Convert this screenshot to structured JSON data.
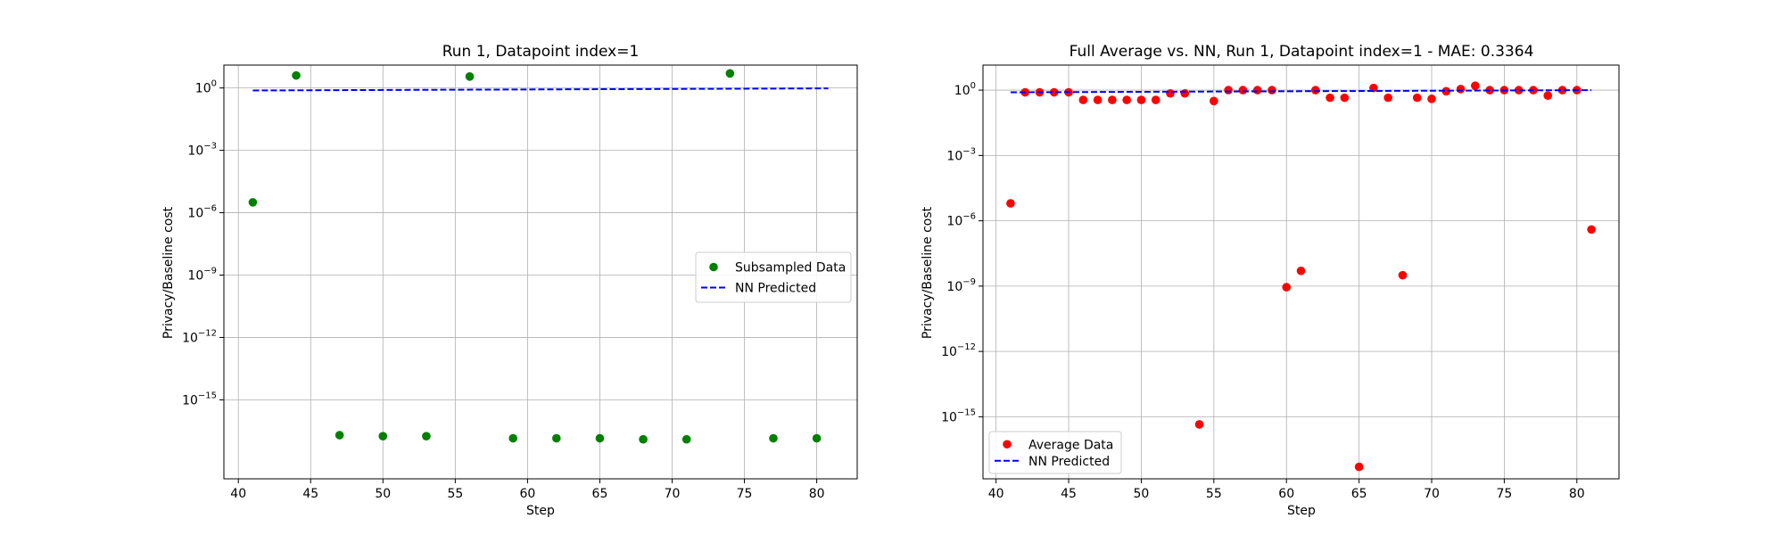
{
  "chart_data": [
    {
      "type": "scatter",
      "title": "Run 1, Datapoint index=1",
      "xlabel": "Step",
      "ylabel": "Privacy/Baseline cost",
      "xlim": [
        39,
        82.8
      ],
      "x_ticks": [
        40,
        45,
        50,
        55,
        60,
        65,
        70,
        75,
        80
      ],
      "yscale": "log",
      "ylim_exponent": [
        -18.8,
        1.1
      ],
      "y_ticks": [
        {
          "exp": 0,
          "label": "10",
          "sup": "0"
        },
        {
          "exp": -3,
          "label": "10",
          "sup": "−3"
        },
        {
          "exp": -6,
          "label": "10",
          "sup": "−6"
        },
        {
          "exp": -9,
          "label": "10",
          "sup": "−9"
        },
        {
          "exp": -12,
          "label": "10",
          "sup": "−12"
        },
        {
          "exp": -15,
          "label": "10",
          "sup": "−15"
        }
      ],
      "grid": true,
      "legend_position": "center-right",
      "series": [
        {
          "name": "Subsampled Data",
          "kind": "scatter",
          "color": "#008000",
          "x": [
            41,
            44,
            47,
            50,
            53,
            56,
            59,
            62,
            65,
            68,
            71,
            74,
            77,
            80
          ],
          "y_exponent": [
            -5.5,
            0.6,
            -16.7,
            -16.75,
            -16.75,
            0.55,
            -16.85,
            -16.85,
            -16.85,
            -16.9,
            -16.9,
            0.7,
            -16.85,
            -16.85
          ]
        },
        {
          "name": "NN Predicted",
          "kind": "dashed-line",
          "color": "#0000ff",
          "x": [
            41,
            80.8
          ],
          "y_exponent": [
            -0.12,
            -0.02
          ]
        }
      ]
    },
    {
      "type": "scatter",
      "title": "Full Average vs. NN, Run 1, Datapoint index=1 - MAE: 0.3364",
      "xlabel": "Step",
      "ylabel": "Privacy/Baseline cost",
      "xlim": [
        39.1,
        82.9
      ],
      "x_ticks": [
        40,
        45,
        50,
        55,
        60,
        65,
        70,
        75,
        80
      ],
      "yscale": "log",
      "ylim_exponent": [
        -17.85,
        1.15
      ],
      "y_ticks": [
        {
          "exp": 0,
          "label": "10",
          "sup": "0"
        },
        {
          "exp": -3,
          "label": "10",
          "sup": "−3"
        },
        {
          "exp": -6,
          "label": "10",
          "sup": "−6"
        },
        {
          "exp": -9,
          "label": "10",
          "sup": "−9"
        },
        {
          "exp": -12,
          "label": "10",
          "sup": "−12"
        },
        {
          "exp": -15,
          "label": "10",
          "sup": "−15"
        }
      ],
      "grid": true,
      "legend_position": "lower-left",
      "series": [
        {
          "name": "Average Data",
          "kind": "scatter",
          "color": "#ff0000",
          "x": [
            41,
            42,
            43,
            44,
            45,
            46,
            47,
            48,
            49,
            50,
            51,
            52,
            53,
            54,
            55,
            56,
            57,
            58,
            59,
            60,
            61,
            62,
            63,
            64,
            65,
            66,
            67,
            68,
            69,
            70,
            71,
            72,
            73,
            74,
            75,
            76,
            77,
            78,
            79,
            80,
            81
          ],
          "y_exponent": [
            -5.2,
            -0.1,
            -0.1,
            -0.1,
            -0.1,
            -0.45,
            -0.45,
            -0.45,
            -0.45,
            -0.45,
            -0.45,
            -0.15,
            -0.15,
            -15.35,
            -0.5,
            0.0,
            0.0,
            0.0,
            0.0,
            -9.05,
            -8.3,
            0.0,
            -0.35,
            -0.35,
            -17.3,
            0.1,
            -0.35,
            -8.5,
            -0.35,
            -0.4,
            -0.05,
            0.05,
            0.2,
            0.0,
            0.0,
            0.0,
            0.0,
            -0.25,
            0.0,
            0.0,
            -6.4
          ]
        },
        {
          "name": "NN Predicted",
          "kind": "dashed-line",
          "color": "#0000ff",
          "x": [
            41,
            81
          ],
          "y_exponent": [
            -0.1,
            0.0
          ]
        }
      ]
    }
  ]
}
